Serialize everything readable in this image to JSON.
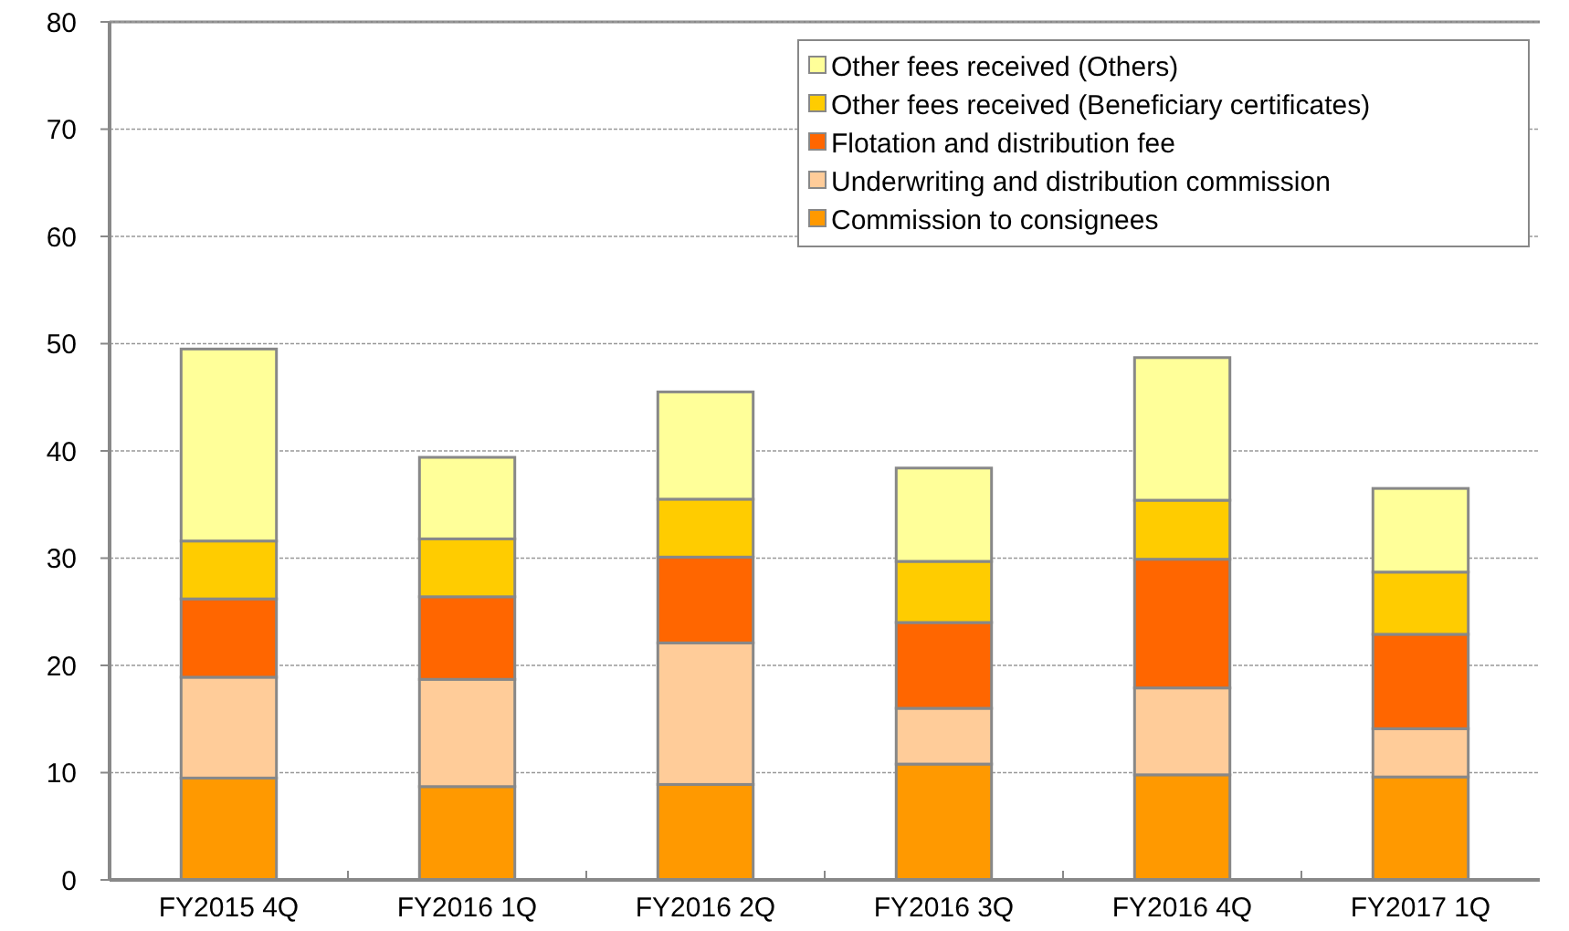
{
  "chart_data": {
    "type": "bar",
    "stacked": true,
    "categories": [
      "FY2015 4Q",
      "FY2016 1Q",
      "FY2016 2Q",
      "FY2016 3Q",
      "FY2016 4Q",
      "FY2017 1Q"
    ],
    "series": [
      {
        "name": "Commission to consignees",
        "color": "#ff9900",
        "values": [
          9.5,
          8.7,
          8.9,
          10.8,
          9.8,
          9.6
        ]
      },
      {
        "name": "Underwriting and distribution commission",
        "color": "#ffcc99",
        "values": [
          9.4,
          10.0,
          13.2,
          5.2,
          8.1,
          4.5
        ]
      },
      {
        "name": "Flotation and distribution fee",
        "color": "#ff6600",
        "values": [
          7.3,
          7.7,
          8.0,
          8.0,
          12.0,
          8.8
        ]
      },
      {
        "name": "Other fees received (Beneficiary certificates)",
        "color": "#ffcc00",
        "values": [
          5.4,
          5.4,
          5.4,
          5.7,
          5.5,
          5.8
        ]
      },
      {
        "name": "Other fees received (Others)",
        "color": "#ffff99",
        "values": [
          17.9,
          7.6,
          10.0,
          8.7,
          13.3,
          7.8
        ]
      }
    ],
    "ylim": [
      0,
      80
    ],
    "yticks": [
      0,
      10,
      20,
      30,
      40,
      50,
      60,
      70,
      80
    ],
    "grid": "y",
    "legend": "top right"
  }
}
